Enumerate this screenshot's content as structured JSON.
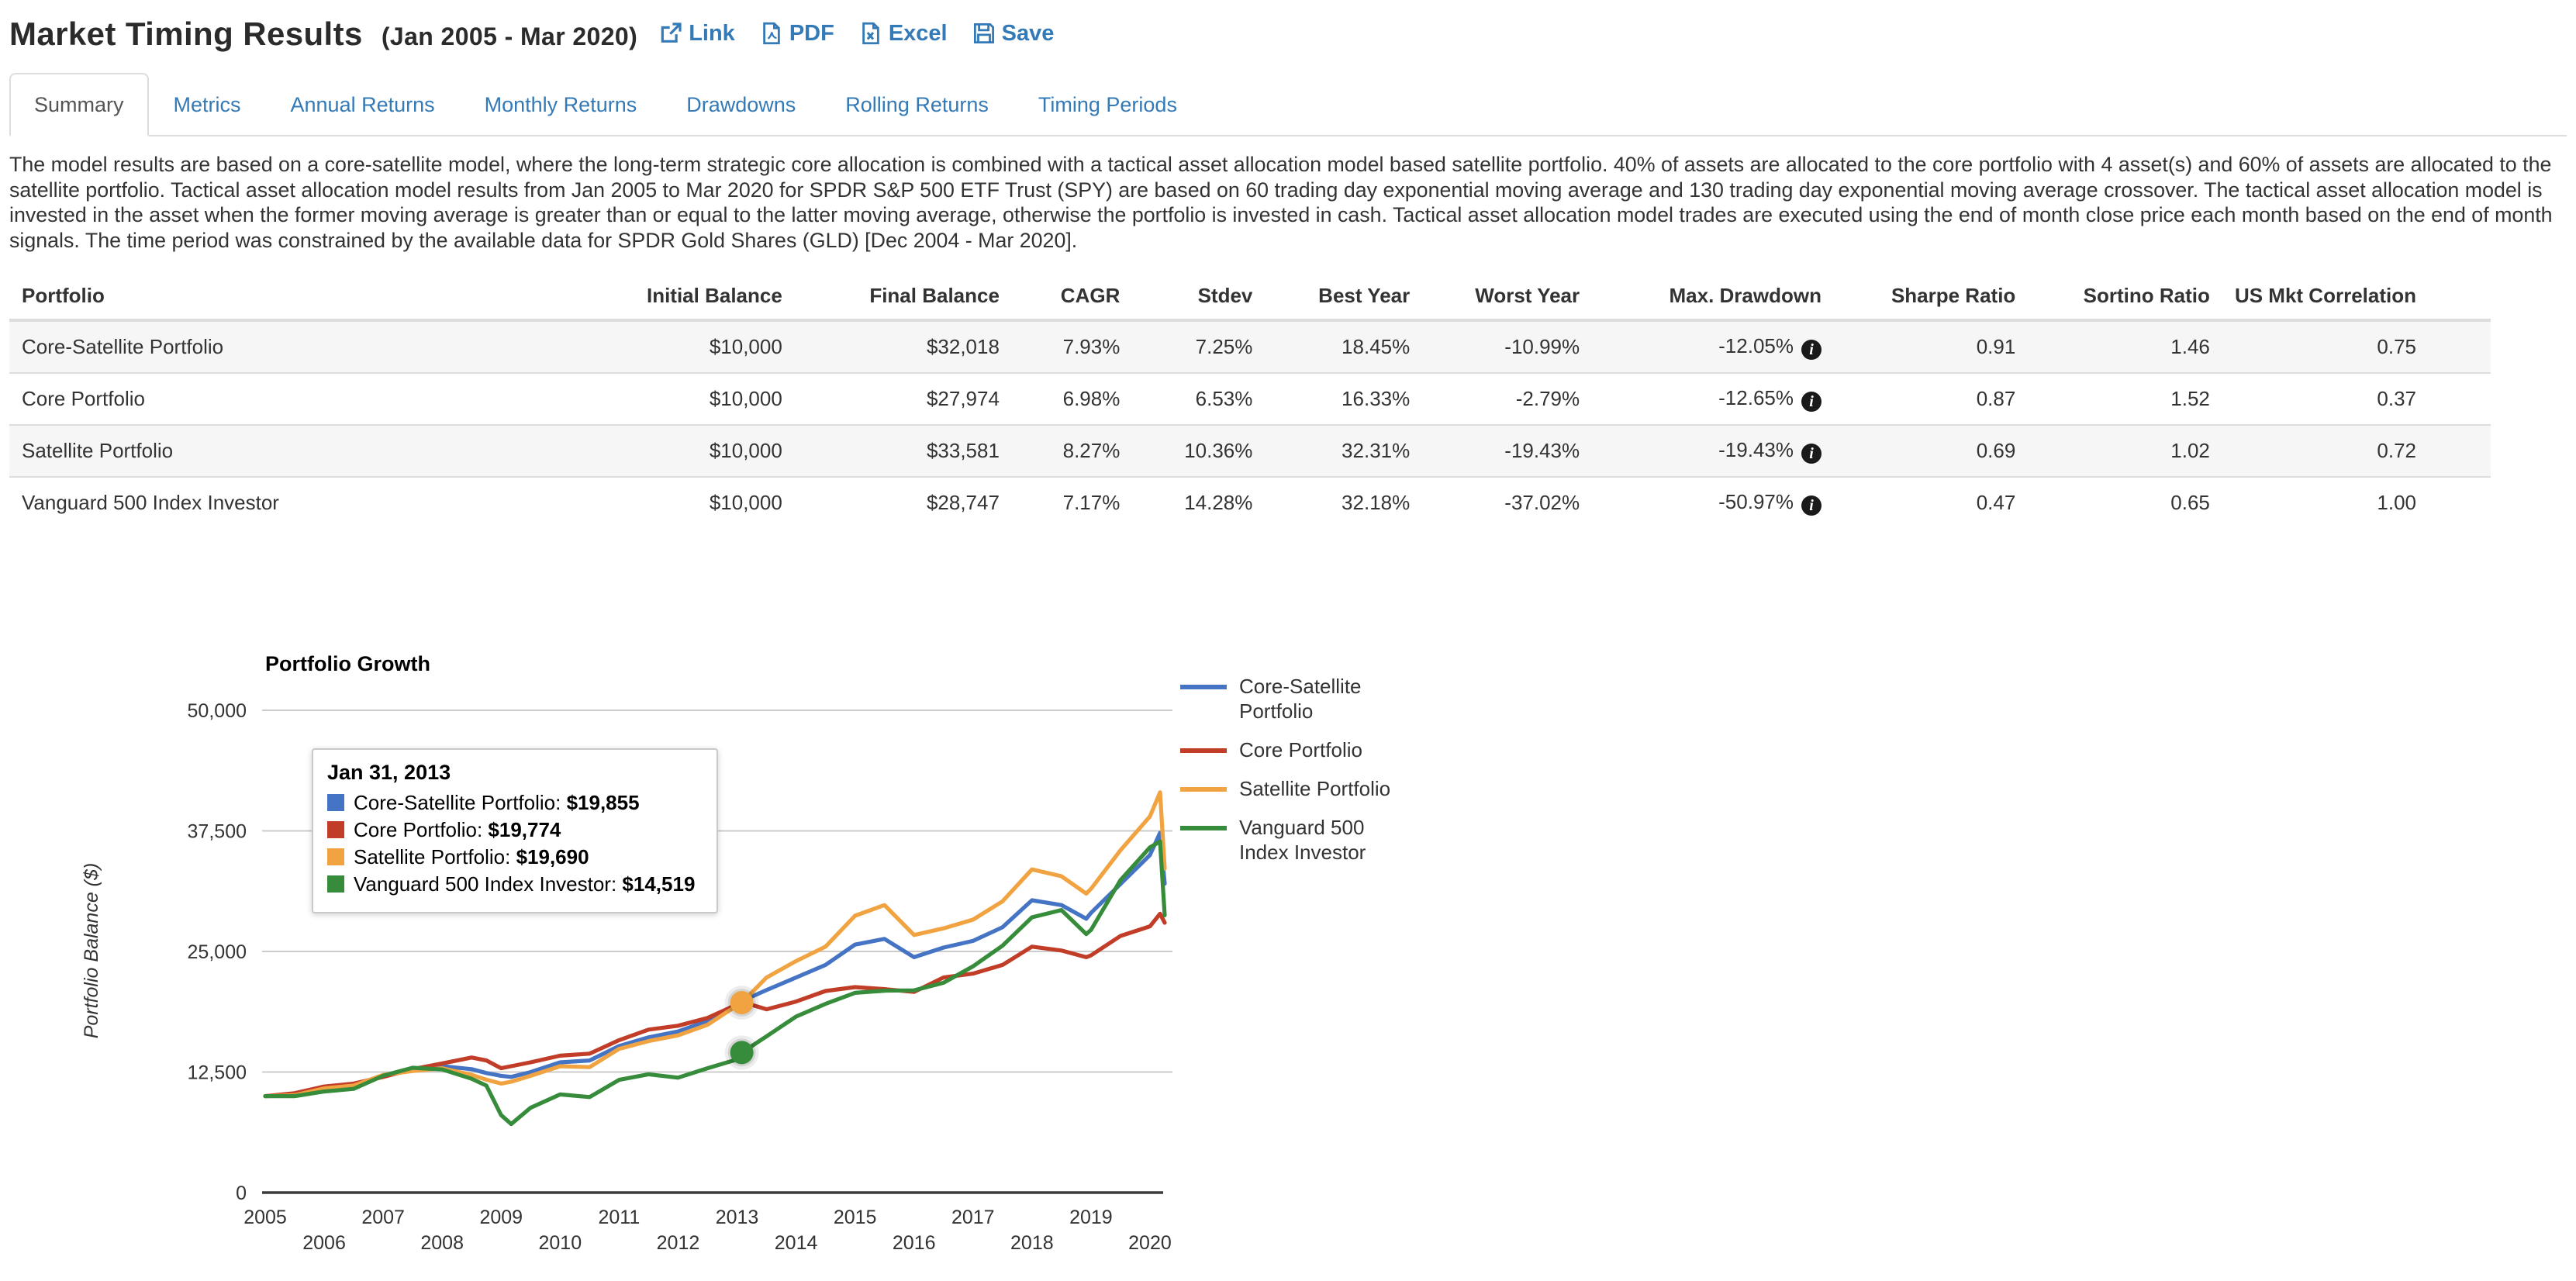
{
  "header": {
    "title": "Market Timing Results",
    "period": "(Jan 2005 - Mar 2020)",
    "actions": [
      {
        "label": "Link",
        "icon": "external-link-icon"
      },
      {
        "label": "PDF",
        "icon": "pdf-file-icon"
      },
      {
        "label": "Excel",
        "icon": "excel-file-icon"
      },
      {
        "label": "Save",
        "icon": "save-icon"
      }
    ]
  },
  "tabs": [
    {
      "label": "Summary",
      "active": true
    },
    {
      "label": "Metrics",
      "active": false
    },
    {
      "label": "Annual Returns",
      "active": false
    },
    {
      "label": "Monthly Returns",
      "active": false
    },
    {
      "label": "Drawdowns",
      "active": false
    },
    {
      "label": "Rolling Returns",
      "active": false
    },
    {
      "label": "Timing Periods",
      "active": false
    }
  ],
  "description": "The model results are based on a core-satellite model, where the long-term strategic core allocation is combined with a tactical asset allocation model based satellite portfolio. 40% of assets are allocated to the core portfolio with 4 asset(s) and 60% of assets are allocated to the satellite portfolio. Tactical asset allocation model results from Jan 2005 to Mar 2020 for SPDR S&P 500 ETF Trust (SPY) are based on 60 trading day exponential moving average and 130 trading day exponential moving average crossover. The tactical asset allocation model is invested in the asset when the former moving average is greater than or equal to the latter moving average, otherwise the portfolio is invested in cash. Tactical asset allocation model trades are executed using the end of month close price each month based on the end of month signals. The time period was constrained by the available data for SPDR Gold Shares (GLD) [Dec 2004 - Mar 2020].",
  "results_table": {
    "columns": [
      "Portfolio",
      "Initial Balance",
      "Final Balance",
      "CAGR",
      "Stdev",
      "Best Year",
      "Worst Year",
      "Max. Drawdown",
      "Sharpe Ratio",
      "Sortino Ratio",
      "US Mkt Correlation"
    ],
    "rows": [
      {
        "portfolio": "Core-Satellite Portfolio",
        "initial_balance": "$10,000",
        "final_balance": "$32,018",
        "cagr": "7.93%",
        "stdev": "7.25%",
        "best_year": "18.45%",
        "worst_year": "-10.99%",
        "max_drawdown": "-12.05%",
        "max_drawdown_info": true,
        "sharpe_ratio": "0.91",
        "sortino_ratio": "1.46",
        "us_mkt_correlation": "0.75"
      },
      {
        "portfolio": "Core Portfolio",
        "initial_balance": "$10,000",
        "final_balance": "$27,974",
        "cagr": "6.98%",
        "stdev": "6.53%",
        "best_year": "16.33%",
        "worst_year": "-2.79%",
        "max_drawdown": "-12.65%",
        "max_drawdown_info": true,
        "sharpe_ratio": "0.87",
        "sortino_ratio": "1.52",
        "us_mkt_correlation": "0.37"
      },
      {
        "portfolio": "Satellite Portfolio",
        "initial_balance": "$10,000",
        "final_balance": "$33,581",
        "cagr": "8.27%",
        "stdev": "10.36%",
        "best_year": "32.31%",
        "worst_year": "-19.43%",
        "max_drawdown": "-19.43%",
        "max_drawdown_info": true,
        "sharpe_ratio": "0.69",
        "sortino_ratio": "1.02",
        "us_mkt_correlation": "0.72"
      },
      {
        "portfolio": "Vanguard 500 Index Investor",
        "initial_balance": "$10,000",
        "final_balance": "$28,747",
        "cagr": "7.17%",
        "stdev": "14.28%",
        "best_year": "32.18%",
        "worst_year": "-37.02%",
        "max_drawdown": "-50.97%",
        "max_drawdown_info": true,
        "sharpe_ratio": "0.47",
        "sortino_ratio": "0.65",
        "us_mkt_correlation": "1.00"
      }
    ]
  },
  "chart_data": {
    "type": "line",
    "title": "Portfolio Growth",
    "xlabel": "",
    "ylabel": "Portfolio Balance ($)",
    "ylim": [
      0,
      50000
    ],
    "yticks": [
      0,
      12500,
      25000,
      37500,
      50000
    ],
    "ytick_labels": [
      "0",
      "12,500",
      "25,000",
      "37,500",
      "50,000"
    ],
    "xticks": [
      2005,
      2006,
      2007,
      2008,
      2009,
      2010,
      2011,
      2012,
      2013,
      2014,
      2015,
      2016,
      2017,
      2018,
      2019,
      2020
    ],
    "xlim": [
      2005,
      2020.25
    ],
    "grid": "horizontal-only",
    "legend_position": "right",
    "x": [
      2005.0,
      2005.5,
      2006.0,
      2006.5,
      2007.0,
      2007.5,
      2008.0,
      2008.5,
      2008.75,
      2009.0,
      2009.17,
      2009.5,
      2010.0,
      2010.5,
      2011.0,
      2011.5,
      2012.0,
      2012.5,
      2013.0,
      2013.08,
      2013.5,
      2014.0,
      2014.5,
      2015.0,
      2015.5,
      2016.0,
      2016.5,
      2017.0,
      2017.5,
      2018.0,
      2018.5,
      2018.92,
      2019.0,
      2019.5,
      2020.0,
      2020.17,
      2020.25
    ],
    "series": [
      {
        "name": "Core-Satellite Portfolio",
        "color": "#4574c4",
        "values": [
          10000,
          10200,
          10900,
          11200,
          12100,
          12700,
          13100,
          12800,
          12400,
          12100,
          12000,
          12500,
          13500,
          13700,
          15200,
          16100,
          16700,
          17800,
          19600,
          19855,
          21000,
          22300,
          23600,
          25700,
          26300,
          24400,
          25400,
          26100,
          27500,
          30300,
          29800,
          28400,
          29000,
          32000,
          35000,
          37300,
          32018
        ]
      },
      {
        "name": "Core Portfolio",
        "color": "#c23d28",
        "values": [
          10000,
          10300,
          11000,
          11300,
          12000,
          12800,
          13400,
          14000,
          13700,
          12900,
          13100,
          13500,
          14200,
          14400,
          15800,
          16900,
          17300,
          18100,
          19500,
          19774,
          19000,
          19800,
          20900,
          21300,
          21100,
          20800,
          22300,
          22700,
          23600,
          25500,
          25100,
          24400,
          24600,
          26600,
          27600,
          28900,
          27974
        ]
      },
      {
        "name": "Satellite Portfolio",
        "color": "#f0a340",
        "values": [
          10000,
          10100,
          10800,
          11100,
          12200,
          12600,
          12900,
          12200,
          11700,
          11300,
          11500,
          12100,
          13100,
          13000,
          14900,
          15700,
          16300,
          17400,
          19400,
          19690,
          22300,
          24000,
          25500,
          28700,
          29800,
          26700,
          27400,
          28300,
          30200,
          33500,
          32800,
          31000,
          31500,
          35500,
          39000,
          41500,
          33581
        ]
      },
      {
        "name": "Vanguard 500 Index Investor",
        "color": "#368c3a",
        "values": [
          10000,
          10000,
          10480,
          10750,
          12120,
          12950,
          12770,
          11800,
          11100,
          8040,
          7100,
          8800,
          10170,
          9900,
          11690,
          12270,
          11920,
          12900,
          13810,
          14519,
          16200,
          18250,
          19560,
          20710,
          20940,
          20970,
          21750,
          23450,
          25600,
          28530,
          29300,
          26800,
          27240,
          32400,
          35780,
          36400,
          28747
        ]
      }
    ],
    "markers": [
      {
        "x": 2013.08,
        "value": 19690,
        "color": "#f0a340"
      },
      {
        "x": 2013.08,
        "value": 14519,
        "color": "#368c3a"
      }
    ],
    "tooltip": {
      "date": "Jan 31, 2013",
      "items": [
        {
          "label": "Core-Satellite Portfolio",
          "value": "$19,855",
          "color": "#4574c4"
        },
        {
          "label": "Core Portfolio",
          "value": "$19,774",
          "color": "#c23d28"
        },
        {
          "label": "Satellite Portfolio",
          "value": "$19,690",
          "color": "#f0a340"
        },
        {
          "label": "Vanguard 500 Index Investor",
          "value": "$14,519",
          "color": "#368c3a"
        }
      ]
    }
  }
}
